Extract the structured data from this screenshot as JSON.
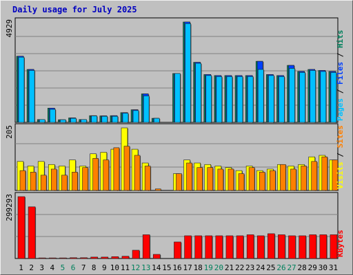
{
  "title": "Daily usage for July 2025",
  "chart_data": [
    {
      "type": "bar",
      "panel": "hits-files-pages",
      "ymax_label": "4929",
      "legend": [
        "Pages",
        "Files",
        "Hits"
      ],
      "colors": {
        "Hits": "#00805c",
        "Files": "#0040ff",
        "Pages": "#00c0ff"
      },
      "categories": [
        "1",
        "2",
        "3",
        "4",
        "5",
        "6",
        "7",
        "8",
        "9",
        "10",
        "11",
        "12",
        "13",
        "14",
        "15",
        "16",
        "17",
        "18",
        "19",
        "20",
        "21",
        "22",
        "23",
        "24",
        "25",
        "26",
        "27",
        "28",
        "29",
        "30",
        "31"
      ],
      "ylim": [
        0,
        4929
      ],
      "series": [
        {
          "name": "Hits",
          "values": [
            3250,
            2600,
            140,
            700,
            130,
            220,
            140,
            330,
            320,
            330,
            480,
            620,
            1400,
            200,
            0,
            2400,
            4929,
            2950,
            2350,
            2300,
            2300,
            2300,
            2300,
            3000,
            2350,
            2300,
            2800,
            2500,
            2600,
            2550,
            2500
          ]
        },
        {
          "name": "Files",
          "values": [
            3250,
            2600,
            140,
            700,
            130,
            220,
            140,
            330,
            320,
            330,
            480,
            620,
            1400,
            200,
            0,
            2400,
            4929,
            2950,
            2350,
            2300,
            2300,
            2300,
            2300,
            3000,
            2350,
            2300,
            2800,
            2500,
            2600,
            2550,
            2500
          ]
        },
        {
          "name": "Pages",
          "values": [
            3200,
            2550,
            140,
            640,
            130,
            200,
            140,
            320,
            300,
            300,
            450,
            580,
            1300,
            200,
            0,
            2400,
            4850,
            2900,
            2300,
            2250,
            2250,
            2250,
            2250,
            2600,
            2300,
            2250,
            2650,
            2450,
            2550,
            2500,
            2450
          ]
        }
      ]
    },
    {
      "type": "bar",
      "panel": "visits-sites",
      "ymax_label": "205",
      "legend": [
        "Visits",
        "Sites"
      ],
      "colors": {
        "Visits": "#ffff00",
        "Sites": "#ff8000"
      },
      "categories": [
        "1",
        "2",
        "3",
        "4",
        "5",
        "6",
        "7",
        "8",
        "9",
        "10",
        "11",
        "12",
        "13",
        "14",
        "15",
        "16",
        "17",
        "18",
        "19",
        "20",
        "21",
        "22",
        "23",
        "24",
        "25",
        "26",
        "27",
        "28",
        "29",
        "30",
        "31"
      ],
      "ylim": [
        0,
        205
      ],
      "series": [
        {
          "name": "Visits",
          "values": [
            95,
            80,
            95,
            85,
            80,
            100,
            80,
            120,
            125,
            135,
            205,
            135,
            90,
            0,
            0,
            55,
            100,
            90,
            85,
            80,
            75,
            65,
            80,
            65,
            70,
            85,
            80,
            85,
            110,
            115,
            100
          ]
        },
        {
          "name": "Sites",
          "values": [
            65,
            60,
            50,
            70,
            50,
            60,
            75,
            105,
            100,
            140,
            145,
            115,
            80,
            5,
            0,
            55,
            90,
            75,
            75,
            70,
            70,
            55,
            75,
            60,
            65,
            85,
            70,
            80,
            95,
            110,
            100
          ]
        }
      ]
    },
    {
      "type": "bar",
      "panel": "kbytes",
      "ymax_label": "299293",
      "legend": [
        "KBytes"
      ],
      "colors": {
        "KBytes": "#ff0000"
      },
      "categories": [
        "1",
        "2",
        "3",
        "4",
        "5",
        "6",
        "7",
        "8",
        "9",
        "10",
        "11",
        "12",
        "13",
        "14",
        "15",
        "16",
        "17",
        "18",
        "19",
        "20",
        "21",
        "22",
        "23",
        "24",
        "25",
        "26",
        "27",
        "28",
        "29",
        "30",
        "31"
      ],
      "ylim": [
        0,
        299293
      ],
      "series": [
        {
          "name": "KBytes",
          "values": [
            299293,
            250000,
            3000,
            3000,
            3000,
            4000,
            4000,
            7000,
            7000,
            9000,
            11000,
            40000,
            115000,
            20000,
            0,
            80000,
            110000,
            110000,
            110000,
            110000,
            110000,
            110000,
            115000,
            110000,
            120000,
            115000,
            110000,
            110000,
            115000,
            115000,
            115000
          ]
        }
      ]
    }
  ],
  "weekend_days": [
    "5",
    "6",
    "12",
    "13",
    "19",
    "20",
    "26",
    "27"
  ],
  "day_label_colors": {
    "weekday": "#000000",
    "weekend": "#00805c"
  }
}
